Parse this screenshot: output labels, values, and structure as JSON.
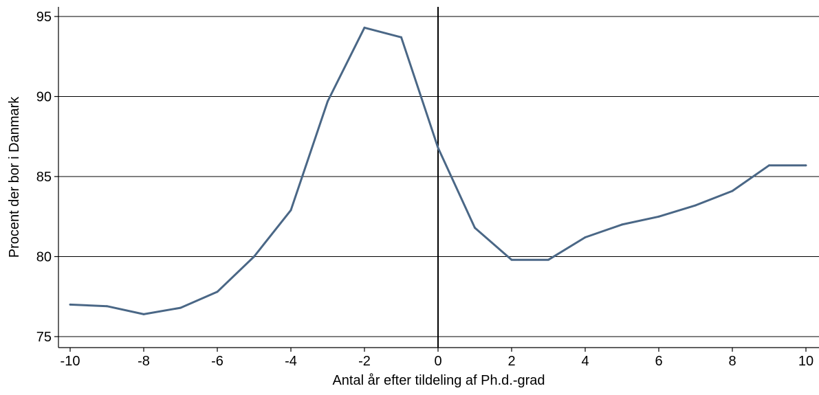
{
  "chart_data": {
    "type": "line",
    "title": "",
    "xlabel": "Antal år efter tildeling af Ph.d.-grad",
    "ylabel": "Procent der bor i Danmark",
    "xlim": [
      -10,
      10
    ],
    "ylim": [
      75,
      95
    ],
    "x_ticks": [
      -10,
      -8,
      -6,
      -4,
      -2,
      0,
      2,
      4,
      6,
      8,
      10
    ],
    "y_ticks": [
      75,
      80,
      85,
      90,
      95
    ],
    "grid": "horizontal",
    "reference_line_x": 0,
    "colors": {
      "line": "#4a6786",
      "grid": "#000000",
      "axis": "#000000"
    },
    "series": [
      {
        "x": [
          -10,
          -9,
          -8,
          -7,
          -6,
          -5,
          -4,
          -3,
          -2,
          -1,
          0,
          1,
          2,
          3,
          4,
          5,
          6,
          7,
          8,
          9,
          10
        ],
        "values": [
          77.0,
          76.9,
          76.4,
          76.8,
          77.8,
          80.0,
          82.9,
          89.7,
          94.3,
          93.7,
          86.8,
          81.8,
          79.8,
          79.8,
          81.2,
          82.0,
          82.5,
          83.2,
          84.1,
          85.7,
          85.7
        ]
      }
    ]
  }
}
